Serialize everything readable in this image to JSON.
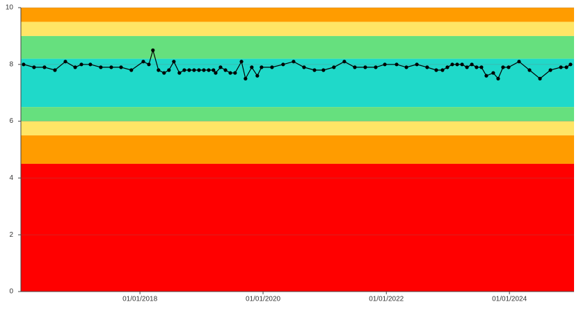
{
  "chart_data": {
    "type": "line",
    "x": [
      "2016-02-11",
      "2016-04-13",
      "2016-06-14",
      "2016-08-15",
      "2016-10-16",
      "2016-12-13",
      "2017-01-19",
      "2017-03-13",
      "2017-05-14",
      "2017-07-15",
      "2017-09-11",
      "2017-11-11",
      "2018-01-21",
      "2018-02-23",
      "2018-03-19",
      "2018-04-21",
      "2018-05-24",
      "2018-06-22",
      "2018-07-21",
      "2018-08-23",
      "2018-09-21",
      "2018-10-20",
      "2018-11-18",
      "2018-12-17",
      "2019-01-15",
      "2019-02-13",
      "2019-03-13",
      "2019-03-26",
      "2019-04-24",
      "2019-05-23",
      "2019-06-21",
      "2019-07-19",
      "2019-08-26",
      "2019-09-19",
      "2019-10-26",
      "2019-11-28",
      "2019-12-23",
      "2020-02-23",
      "2020-04-29",
      "2020-06-30",
      "2020-08-31",
      "2020-11-01",
      "2020-12-24",
      "2021-02-24",
      "2021-04-27",
      "2021-06-28",
      "2021-08-29",
      "2021-10-30",
      "2021-12-23",
      "2022-03-03",
      "2022-04-30",
      "2022-07-01",
      "2022-08-31",
      "2022-10-24",
      "2022-11-30",
      "2022-12-29",
      "2023-01-27",
      "2023-02-25",
      "2023-03-26",
      "2023-04-24",
      "2023-05-23",
      "2023-06-20",
      "2023-07-19",
      "2023-08-17",
      "2023-09-27",
      "2023-10-26",
      "2023-11-24",
      "2023-12-27",
      "2024-02-27",
      "2024-04-29",
      "2024-06-30",
      "2024-08-31",
      "2024-11-01",
      "2024-12-04",
      "2024-12-28"
    ],
    "values": [
      8.0,
      7.9,
      7.9,
      7.8,
      8.1,
      7.9,
      8.0,
      8.0,
      7.9,
      7.9,
      7.9,
      7.8,
      8.1,
      8.0,
      8.5,
      7.8,
      7.7,
      7.8,
      8.1,
      7.7,
      7.8,
      7.8,
      7.8,
      7.8,
      7.8,
      7.8,
      7.8,
      7.7,
      7.9,
      7.8,
      7.7,
      7.7,
      8.1,
      7.5,
      7.9,
      7.6,
      7.9,
      7.9,
      8.0,
      8.1,
      7.9,
      7.8,
      7.8,
      7.9,
      8.1,
      7.9,
      7.9,
      7.9,
      8.0,
      8.0,
      7.9,
      8.0,
      7.9,
      7.8,
      7.8,
      7.9,
      8.0,
      8.0,
      8.0,
      7.9,
      8.0,
      7.9,
      7.9,
      7.6,
      7.7,
      7.5,
      7.9,
      7.9,
      8.1,
      7.8,
      7.5,
      7.8,
      7.9,
      7.9,
      8.0
    ],
    "color": "#000000",
    "xlim": [
      "2016-01-26",
      "2025-01-18"
    ],
    "xticks": [
      {
        "value": "2018-01-01",
        "label": "01/01/2018"
      },
      {
        "value": "2020-01-01",
        "label": "01/01/2020"
      },
      {
        "value": "2022-01-01",
        "label": "01/01/2022"
      },
      {
        "value": "2024-01-01",
        "label": "01/01/2024"
      }
    ],
    "ylim": [
      0,
      10
    ],
    "yticks": [
      0,
      2,
      4,
      6,
      8,
      10
    ],
    "grid": true,
    "bands": [
      {
        "from": 9.5,
        "to": 10,
        "color": "#ff9c00"
      },
      {
        "from": 9,
        "to": 9.5,
        "color": "#ffe566"
      },
      {
        "from": 8.2,
        "to": 9,
        "color": "#66e07e"
      },
      {
        "from": 6.5,
        "to": 8.2,
        "color": "#1fd9c9"
      },
      {
        "from": 6,
        "to": 6.5,
        "color": "#66e07e"
      },
      {
        "from": 5.5,
        "to": 6,
        "color": "#ffe566"
      },
      {
        "from": 4.5,
        "to": 5.5,
        "color": "#ff9c00"
      },
      {
        "from": 0,
        "to": 4.5,
        "color": "#ff0000"
      }
    ]
  }
}
